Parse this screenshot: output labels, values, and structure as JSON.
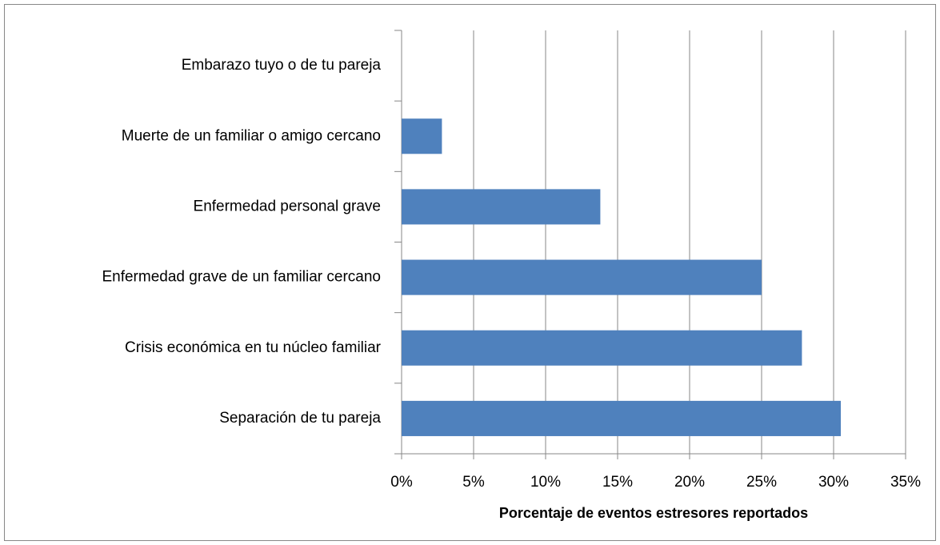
{
  "chart_data": {
    "type": "barh",
    "categories": [
      "Embarazo tuyo o de tu pareja",
      "Muerte de un familiar o amigo cercano",
      "Enfermedad personal grave",
      "Enfermedad grave de un familiar cercano",
      "Crisis económica en tu núcleo familiar",
      "Separación de tu pareja"
    ],
    "values": [
      0,
      2.8,
      13.8,
      25.0,
      27.8,
      30.5
    ],
    "color": "#4f81bd",
    "xlabel": "Porcentaje de eventos estresores reportados",
    "xlim": [
      0,
      35
    ],
    "xticks": [
      {
        "value": 0,
        "label": "0%"
      },
      {
        "value": 5,
        "label": "5%"
      },
      {
        "value": 10,
        "label": "10%"
      },
      {
        "value": 15,
        "label": "15%"
      },
      {
        "value": 20,
        "label": "20%"
      },
      {
        "value": 25,
        "label": "25%"
      },
      {
        "value": 30,
        "label": "30%"
      },
      {
        "value": 35,
        "label": "35%"
      }
    ],
    "grid": true
  }
}
